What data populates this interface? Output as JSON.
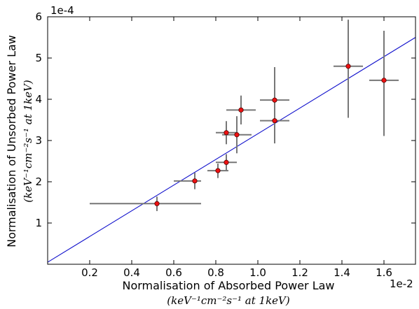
{
  "chart_data": {
    "type": "scatter",
    "xlabel": "Normalisation of Absorbed Power Law",
    "xunits": "(keV⁻¹cm⁻²s⁻¹ at 1keV)",
    "ylabel": "Normalisation of Unsorbed Power Law",
    "yunits": "(keV⁻¹cm⁻²s⁻¹ at 1keV)",
    "x_exponent_label": "1e-2",
    "y_exponent_label": "1e-4",
    "xlim": [
      0.0,
      1.75
    ],
    "ylim": [
      0,
      6
    ],
    "xticks": [
      0.2,
      0.4,
      0.6,
      0.8,
      1.0,
      1.2,
      1.4,
      1.6
    ],
    "xtick_labels": [
      "0.2",
      "0.4",
      "0.6",
      "0.8",
      "1.0",
      "1.2",
      "1.4",
      "1.6"
    ],
    "yticks": [
      1,
      2,
      3,
      4,
      5,
      6
    ],
    "ytick_labels": [
      "1",
      "2",
      "3",
      "4",
      "5",
      "6"
    ],
    "grid": false,
    "points": [
      {
        "x": 0.52,
        "y": 1.47,
        "xerr": [
          0.32,
          0.21
        ],
        "yerr": [
          0.18,
          0.17
        ]
      },
      {
        "x": 0.7,
        "y": 2.02,
        "xerr": [
          0.1,
          0.03
        ],
        "yerr": [
          0.2,
          0.2
        ]
      },
      {
        "x": 0.81,
        "y": 2.27,
        "xerr": [
          0.05,
          0.05
        ],
        "yerr": [
          0.18,
          0.17
        ]
      },
      {
        "x": 0.85,
        "y": 2.47,
        "xerr": [
          0.05,
          0.05
        ],
        "yerr": [
          0.2,
          0.2
        ]
      },
      {
        "x": 0.85,
        "y": 3.19,
        "xerr": [
          0.05,
          0.05
        ],
        "yerr": [
          0.28,
          0.28
        ]
      },
      {
        "x": 0.9,
        "y": 3.14,
        "xerr": [
          0.07,
          0.07
        ],
        "yerr": [
          0.45,
          0.45
        ]
      },
      {
        "x": 0.92,
        "y": 3.74,
        "xerr": [
          0.07,
          0.07
        ],
        "yerr": [
          0.35,
          0.35
        ]
      },
      {
        "x": 1.08,
        "y": 3.98,
        "xerr": [
          0.07,
          0.07
        ],
        "yerr": [
          0.8,
          0.8
        ]
      },
      {
        "x": 1.08,
        "y": 3.48,
        "xerr": [
          0.07,
          0.07
        ],
        "yerr": [
          0.55,
          0.55
        ]
      },
      {
        "x": 1.43,
        "y": 4.8,
        "xerr": [
          0.07,
          0.07
        ],
        "yerr": [
          1.25,
          1.13
        ]
      },
      {
        "x": 1.6,
        "y": 4.46,
        "xerr": [
          0.07,
          0.07
        ],
        "yerr": [
          1.35,
          1.2
        ]
      }
    ],
    "fit_line": {
      "x": [
        0.0,
        1.75
      ],
      "y": [
        0.05,
        5.5
      ]
    },
    "colors": {
      "marker_fill": "#ee1111",
      "marker_edge": "#550000",
      "errorbar": "#777777",
      "fit_line": "#1010cc",
      "axis": "#000000"
    }
  }
}
